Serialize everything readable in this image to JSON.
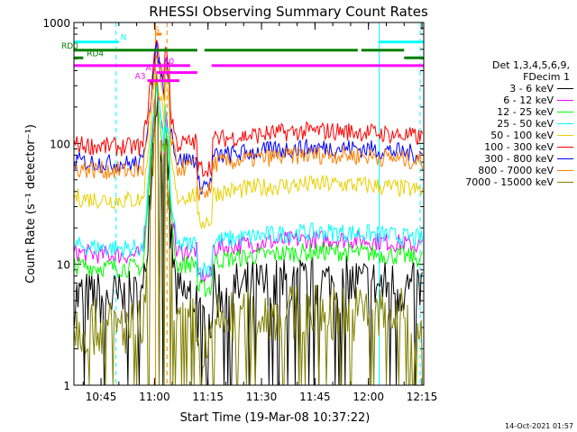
{
  "chart_data": {
    "type": "line",
    "title": "RHESSI Observing Summary Count Rates",
    "xlabel": "Start Time (19-Mar-08 10:37:22)",
    "ylabel": "Count Rate (s⁻¹ detector⁻¹)",
    "yscale": "log",
    "ylim": [
      1,
      1000
    ],
    "xlim_minutes": [
      37.4,
      135.5
    ],
    "x_tick_labels": [
      "10:45",
      "11:00",
      "11:15",
      "11:30",
      "11:45",
      "12:00",
      "12:15"
    ],
    "x_tick_minutes": [
      45,
      60,
      75,
      90,
      105,
      120,
      135
    ],
    "y_tick_labels": [
      "1",
      "10",
      "100",
      "1000"
    ],
    "y_tick_values": [
      1,
      10,
      100,
      1000
    ],
    "legend_header": [
      "Det 1,3,4,5,6,9,",
      "FDecim 1"
    ],
    "series": [
      {
        "name": "3 - 6 keV",
        "color": "#000000",
        "baseline": 6,
        "peak": 300
      },
      {
        "name": "6 - 12 keV",
        "color": "#ff00ff",
        "baseline": 14,
        "peak": 350
      },
      {
        "name": "12 - 25 keV",
        "color": "#00ff00",
        "baseline": 11,
        "peak": 300
      },
      {
        "name": "25 - 50 keV",
        "color": "#00ffff",
        "baseline": 16,
        "peak": 320
      },
      {
        "name": "50 - 100 keV",
        "color": "#e8d000",
        "baseline": 40,
        "peak": 400
      },
      {
        "name": "100 - 300 keV",
        "color": "#ff0000",
        "baseline": 110,
        "peak": 700
      },
      {
        "name": "300 - 800 keV",
        "color": "#0000ff",
        "baseline": 80,
        "peak": 600
      },
      {
        "name": "800 - 7000 keV",
        "color": "#ff8000",
        "baseline": 70,
        "peak": 500
      },
      {
        "name": "7000 - 15000 keV",
        "color": "#808000",
        "baseline": 3.5,
        "peak": 250
      }
    ],
    "flag_bars": [
      {
        "label": "N",
        "color": "#00ffff",
        "y": 690,
        "segments": [
          [
            37.4,
            50
          ],
          [
            123,
            135.5
          ]
        ]
      },
      {
        "label": "S",
        "color": "#ff8000",
        "y": 800,
        "segments": [
          [
            60.5,
            62
          ]
        ]
      },
      {
        "label": "RD0",
        "color": "#008000",
        "y": 590,
        "segments": [
          [
            37.4,
            72
          ],
          [
            74,
            117
          ],
          [
            118,
            130
          ]
        ]
      },
      {
        "label": "RD4",
        "color": "#008000",
        "y": 510,
        "segments": [
          [
            37.4,
            40
          ],
          [
            130,
            135.5
          ]
        ]
      },
      {
        "label": "A0",
        "color": "#ff00ff",
        "y": 440,
        "segments": [
          [
            37.4,
            70
          ],
          [
            76,
            135.5
          ]
        ]
      },
      {
        "label": "A1",
        "color": "#ff00ff",
        "y": 385,
        "segments": [
          [
            60.5,
            72
          ]
        ]
      },
      {
        "label": "A3",
        "color": "#ff00ff",
        "y": 330,
        "segments": [
          [
            58,
            67
          ]
        ]
      }
    ],
    "vertical_markers": [
      {
        "minute": 49.2,
        "color": "#00ffff",
        "style": "dashed"
      },
      {
        "minute": 60.3,
        "color": "#ff8000",
        "style": "solid"
      },
      {
        "minute": 63.5,
        "color": "#ff8000",
        "style": "dashed"
      },
      {
        "minute": 123,
        "color": "#00ffff",
        "style": "solid"
      },
      {
        "minute": 134.5,
        "color": "#00ffff",
        "style": "dashed"
      }
    ]
  },
  "timestamp": "14-Oct-2021 01:57"
}
